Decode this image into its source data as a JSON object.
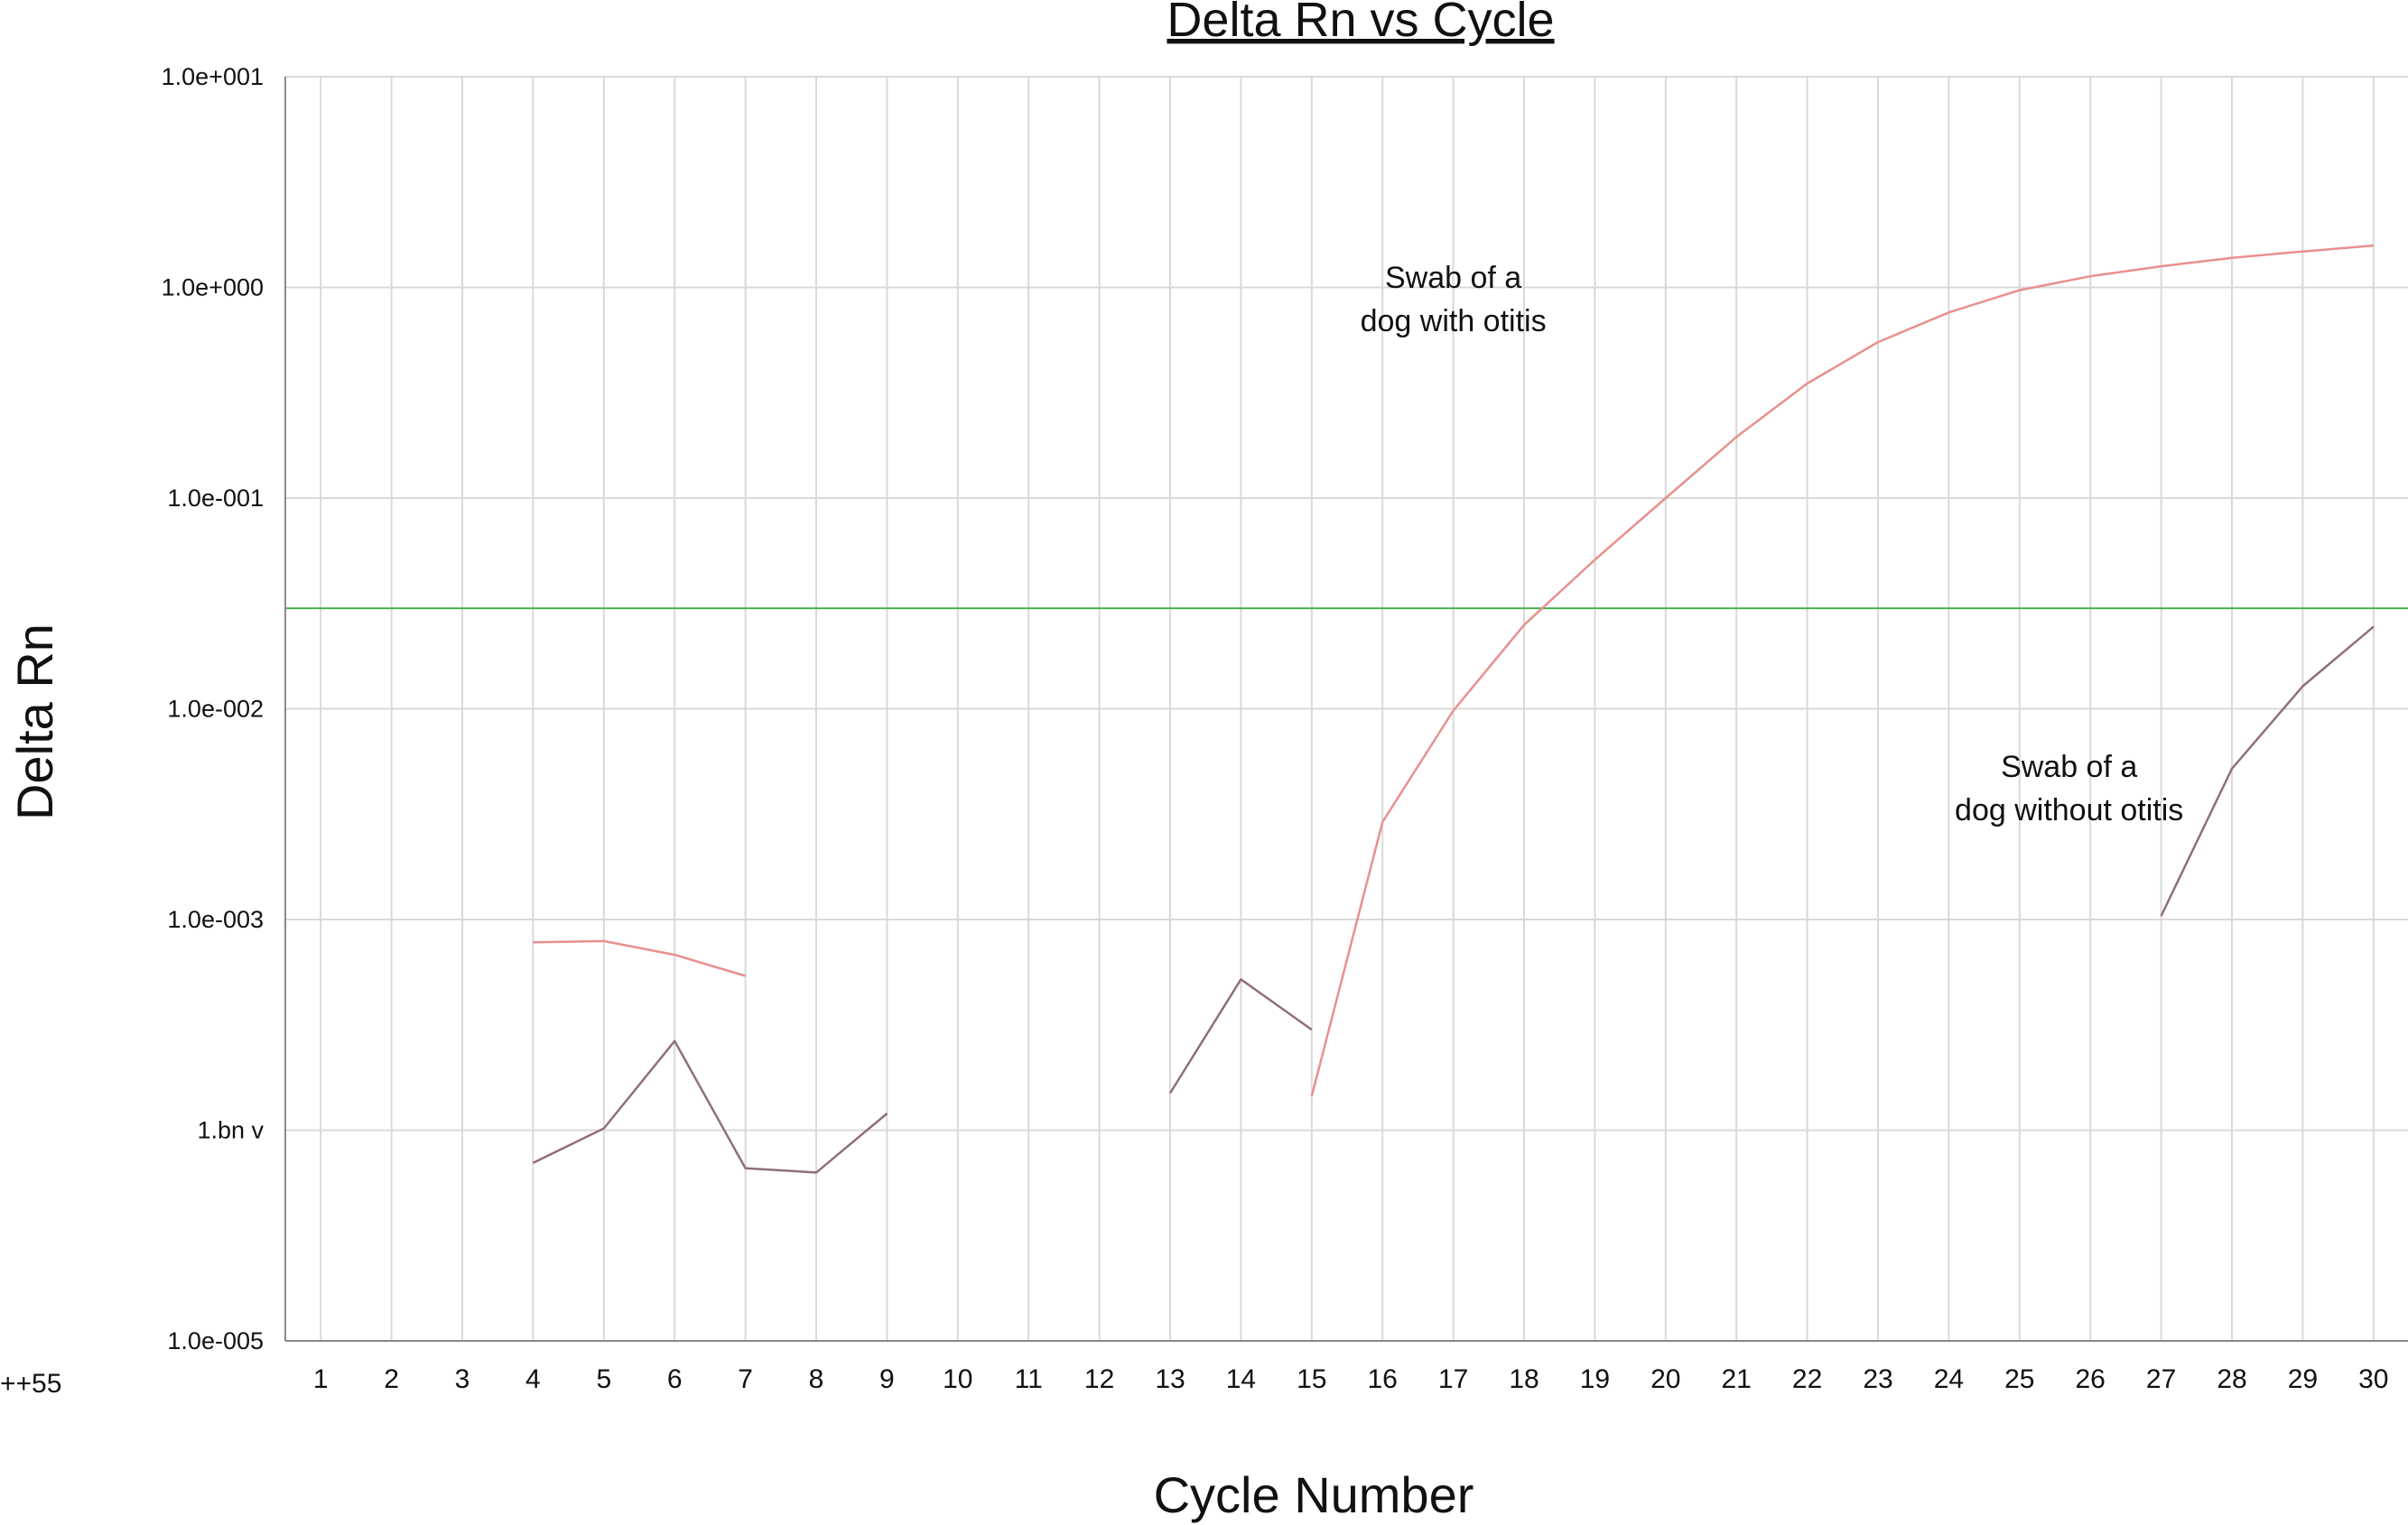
{
  "chart_data": {
    "type": "line",
    "title": "Delta Rn vs Cycle",
    "xlabel": "Cycle Number",
    "ylabel": "Delta Rn",
    "y_scale": "log",
    "ylim": [
      1e-05,
      10
    ],
    "xlim": [
      0.5,
      30.5
    ],
    "grid": true,
    "categories": [
      1,
      2,
      3,
      4,
      5,
      6,
      7,
      8,
      9,
      10,
      11,
      12,
      13,
      14,
      15,
      16,
      17,
      18,
      19,
      20,
      21,
      22,
      23,
      24,
      25,
      26,
      27,
      28,
      29,
      30
    ],
    "y_tick_labels": [
      "1.0e+001",
      "1.0e+000",
      "1.0e-001",
      "1.0e-002",
      "1.0e-003",
      "1.bn v",
      "1.0e-005"
    ],
    "y_tick_values": [
      10,
      1,
      0.1,
      0.01,
      0.001,
      0.0001,
      1e-05
    ],
    "x_tick_labels": [
      "1",
      "2",
      "3",
      "4",
      "5",
      "6",
      "7",
      "8",
      "9",
      "10",
      "11",
      "12",
      "13",
      "14",
      "15",
      "16",
      "17",
      "18",
      "19",
      "20",
      "21",
      "22",
      "23",
      "24",
      "25",
      "26",
      "27",
      "28",
      "29",
      "30"
    ],
    "threshold": {
      "value": 0.03,
      "color": "#4caf50"
    },
    "series": [
      {
        "color": "#e8908f",
        "segments": [
          {
            "x": [
              4,
              5,
              6,
              7
            ],
            "y": [
              0.00078,
              0.00079,
              0.00068,
              0.00054
            ]
          },
          {
            "x": [
              15,
              16,
              17,
              18,
              19,
              20,
              21,
              22,
              23,
              24,
              25,
              26,
              27,
              28,
              29,
              30
            ],
            "y": [
              0.000145,
              0.0029,
              0.0098,
              0.025,
              0.051,
              0.1,
              0.195,
              0.35,
              0.55,
              0.76,
              0.97,
              1.13,
              1.26,
              1.38,
              1.48,
              1.58
            ]
          }
        ]
      },
      {
        "color": "#8f7078",
        "segments": [
          {
            "x": [
              4,
              5,
              6,
              7,
              8,
              9
            ],
            "y": [
              7e-05,
              0.000102,
              0.000265,
              6.6e-05,
              6.3e-05,
              0.00012
            ]
          },
          {
            "x": [
              13,
              14,
              15
            ],
            "y": [
              0.00015,
              0.00052,
              0.0003
            ]
          },
          {
            "x": [
              27,
              28,
              29,
              30
            ],
            "y": [
              0.00104,
              0.0052,
              0.0128,
              0.0245
            ]
          }
        ]
      }
    ],
    "annotations": [
      {
        "lines": [
          "Swab of a",
          "dog with otitis"
        ],
        "x": 17,
        "y": 0.9
      },
      {
        "lines": [
          "Swab of a",
          "dog without otitis"
        ],
        "x": 25.7,
        "y": 0.0043
      }
    ],
    "stray_labels": [
      "++55"
    ]
  }
}
